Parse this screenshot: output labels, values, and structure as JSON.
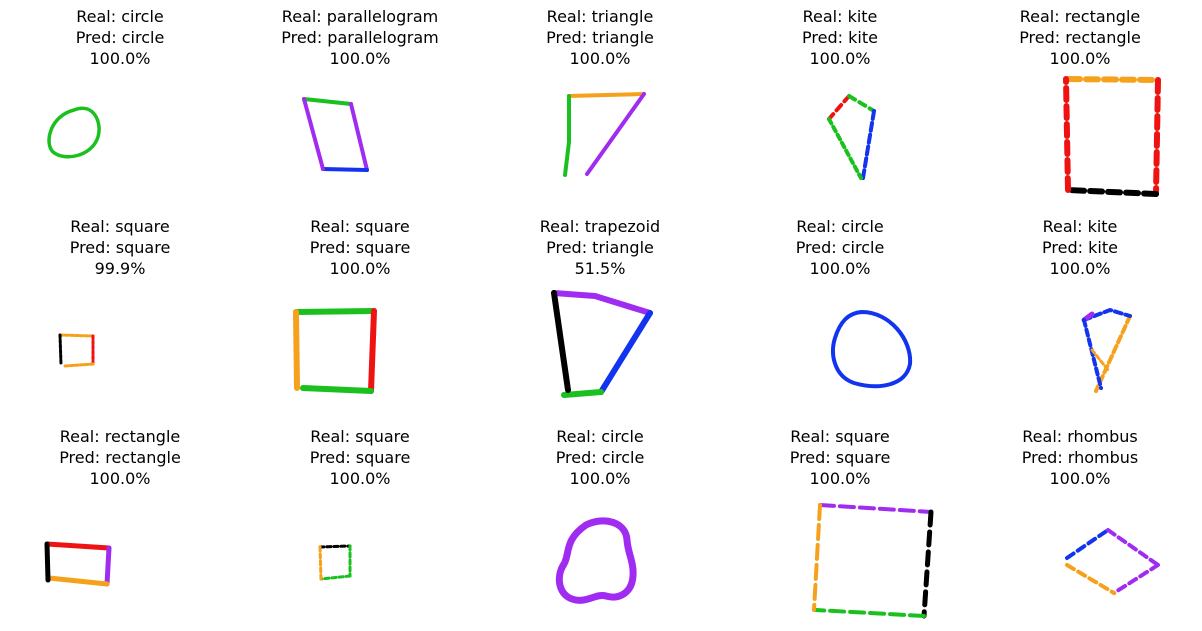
{
  "colors": {
    "green": "#19c01e",
    "purple": "#a02cf2",
    "blue": "#1234ee",
    "orange": "#f6a11c",
    "red": "#ee1212",
    "black": "#000000"
  },
  "panels": [
    {
      "real": "Real: circle",
      "pred": "Pred: circle",
      "confidence": "100.0%",
      "confidence_value": 100.0
    },
    {
      "real": "Real: parallelogram",
      "pred": "Pred: parallelogram",
      "confidence": "100.0%",
      "confidence_value": 100.0
    },
    {
      "real": "Real: triangle",
      "pred": "Pred: triangle",
      "confidence": "100.0%",
      "confidence_value": 100.0
    },
    {
      "real": "Real: kite",
      "pred": "Pred: kite",
      "confidence": "100.0%",
      "confidence_value": 100.0
    },
    {
      "real": "Real: rectangle",
      "pred": "Pred: rectangle",
      "confidence": "100.0%",
      "confidence_value": 100.0
    },
    {
      "real": "Real: square",
      "pred": "Pred: square",
      "confidence": "99.9%",
      "confidence_value": 99.9
    },
    {
      "real": "Real: square",
      "pred": "Pred: square",
      "confidence": "100.0%",
      "confidence_value": 100.0
    },
    {
      "real": "Real: trapezoid",
      "pred": "Pred: triangle",
      "confidence": "51.5%",
      "confidence_value": 51.5
    },
    {
      "real": "Real: circle",
      "pred": "Pred: circle",
      "confidence": "100.0%",
      "confidence_value": 100.0
    },
    {
      "real": "Real: kite",
      "pred": "Pred: kite",
      "confidence": "100.0%",
      "confidence_value": 100.0
    },
    {
      "real": "Real: rectangle",
      "pred": "Pred: rectangle",
      "confidence": "100.0%",
      "confidence_value": 100.0
    },
    {
      "real": "Real: square",
      "pred": "Pred: square",
      "confidence": "100.0%",
      "confidence_value": 100.0
    },
    {
      "real": "Real: circle",
      "pred": "Pred: circle",
      "confidence": "100.0%",
      "confidence_value": 100.0
    },
    {
      "real": "Real: square",
      "pred": "Pred: square",
      "confidence": "100.0%",
      "confidence_value": 100.0
    },
    {
      "real": "Real: rhombus",
      "pred": "Pred: rhombus",
      "confidence": "100.0%",
      "confidence_value": 100.0
    }
  ]
}
